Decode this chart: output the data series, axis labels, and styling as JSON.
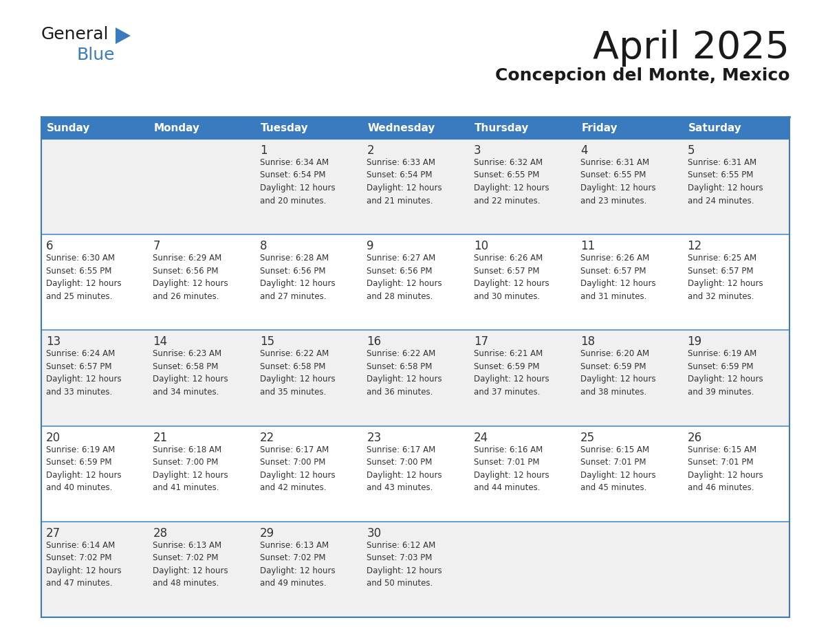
{
  "title": "April 2025",
  "subtitle": "Concepcion del Monte, Mexico",
  "header_bg_color": "#3a7bbf",
  "header_text_color": "#ffffff",
  "row_bg_even": "#f0f0f0",
  "row_bg_odd": "#ffffff",
  "border_color": "#3a7bbf",
  "sep_line_color": "#4a8fd0",
  "text_color": "#333333",
  "days_of_week": [
    "Sunday",
    "Monday",
    "Tuesday",
    "Wednesday",
    "Thursday",
    "Friday",
    "Saturday"
  ],
  "logo_general_color": "#1a1a1a",
  "logo_blue_color": "#3a7bbf",
  "logo_triangle_color": "#3a7bbf",
  "title_color": "#1a1a1a",
  "title_fontsize": 40,
  "subtitle_fontsize": 18,
  "header_fontsize": 11,
  "day_num_fontsize": 12,
  "info_fontsize": 8.5,
  "logo_fontsize": 18,
  "weeks": [
    [
      {
        "day": "",
        "info": ""
      },
      {
        "day": "",
        "info": ""
      },
      {
        "day": "1",
        "info": "Sunrise: 6:34 AM\nSunset: 6:54 PM\nDaylight: 12 hours\nand 20 minutes."
      },
      {
        "day": "2",
        "info": "Sunrise: 6:33 AM\nSunset: 6:54 PM\nDaylight: 12 hours\nand 21 minutes."
      },
      {
        "day": "3",
        "info": "Sunrise: 6:32 AM\nSunset: 6:55 PM\nDaylight: 12 hours\nand 22 minutes."
      },
      {
        "day": "4",
        "info": "Sunrise: 6:31 AM\nSunset: 6:55 PM\nDaylight: 12 hours\nand 23 minutes."
      },
      {
        "day": "5",
        "info": "Sunrise: 6:31 AM\nSunset: 6:55 PM\nDaylight: 12 hours\nand 24 minutes."
      }
    ],
    [
      {
        "day": "6",
        "info": "Sunrise: 6:30 AM\nSunset: 6:55 PM\nDaylight: 12 hours\nand 25 minutes."
      },
      {
        "day": "7",
        "info": "Sunrise: 6:29 AM\nSunset: 6:56 PM\nDaylight: 12 hours\nand 26 minutes."
      },
      {
        "day": "8",
        "info": "Sunrise: 6:28 AM\nSunset: 6:56 PM\nDaylight: 12 hours\nand 27 minutes."
      },
      {
        "day": "9",
        "info": "Sunrise: 6:27 AM\nSunset: 6:56 PM\nDaylight: 12 hours\nand 28 minutes."
      },
      {
        "day": "10",
        "info": "Sunrise: 6:26 AM\nSunset: 6:57 PM\nDaylight: 12 hours\nand 30 minutes."
      },
      {
        "day": "11",
        "info": "Sunrise: 6:26 AM\nSunset: 6:57 PM\nDaylight: 12 hours\nand 31 minutes."
      },
      {
        "day": "12",
        "info": "Sunrise: 6:25 AM\nSunset: 6:57 PM\nDaylight: 12 hours\nand 32 minutes."
      }
    ],
    [
      {
        "day": "13",
        "info": "Sunrise: 6:24 AM\nSunset: 6:57 PM\nDaylight: 12 hours\nand 33 minutes."
      },
      {
        "day": "14",
        "info": "Sunrise: 6:23 AM\nSunset: 6:58 PM\nDaylight: 12 hours\nand 34 minutes."
      },
      {
        "day": "15",
        "info": "Sunrise: 6:22 AM\nSunset: 6:58 PM\nDaylight: 12 hours\nand 35 minutes."
      },
      {
        "day": "16",
        "info": "Sunrise: 6:22 AM\nSunset: 6:58 PM\nDaylight: 12 hours\nand 36 minutes."
      },
      {
        "day": "17",
        "info": "Sunrise: 6:21 AM\nSunset: 6:59 PM\nDaylight: 12 hours\nand 37 minutes."
      },
      {
        "day": "18",
        "info": "Sunrise: 6:20 AM\nSunset: 6:59 PM\nDaylight: 12 hours\nand 38 minutes."
      },
      {
        "day": "19",
        "info": "Sunrise: 6:19 AM\nSunset: 6:59 PM\nDaylight: 12 hours\nand 39 minutes."
      }
    ],
    [
      {
        "day": "20",
        "info": "Sunrise: 6:19 AM\nSunset: 6:59 PM\nDaylight: 12 hours\nand 40 minutes."
      },
      {
        "day": "21",
        "info": "Sunrise: 6:18 AM\nSunset: 7:00 PM\nDaylight: 12 hours\nand 41 minutes."
      },
      {
        "day": "22",
        "info": "Sunrise: 6:17 AM\nSunset: 7:00 PM\nDaylight: 12 hours\nand 42 minutes."
      },
      {
        "day": "23",
        "info": "Sunrise: 6:17 AM\nSunset: 7:00 PM\nDaylight: 12 hours\nand 43 minutes."
      },
      {
        "day": "24",
        "info": "Sunrise: 6:16 AM\nSunset: 7:01 PM\nDaylight: 12 hours\nand 44 minutes."
      },
      {
        "day": "25",
        "info": "Sunrise: 6:15 AM\nSunset: 7:01 PM\nDaylight: 12 hours\nand 45 minutes."
      },
      {
        "day": "26",
        "info": "Sunrise: 6:15 AM\nSunset: 7:01 PM\nDaylight: 12 hours\nand 46 minutes."
      }
    ],
    [
      {
        "day": "27",
        "info": "Sunrise: 6:14 AM\nSunset: 7:02 PM\nDaylight: 12 hours\nand 47 minutes."
      },
      {
        "day": "28",
        "info": "Sunrise: 6:13 AM\nSunset: 7:02 PM\nDaylight: 12 hours\nand 48 minutes."
      },
      {
        "day": "29",
        "info": "Sunrise: 6:13 AM\nSunset: 7:02 PM\nDaylight: 12 hours\nand 49 minutes."
      },
      {
        "day": "30",
        "info": "Sunrise: 6:12 AM\nSunset: 7:03 PM\nDaylight: 12 hours\nand 50 minutes."
      },
      {
        "day": "",
        "info": ""
      },
      {
        "day": "",
        "info": ""
      },
      {
        "day": "",
        "info": ""
      }
    ]
  ]
}
